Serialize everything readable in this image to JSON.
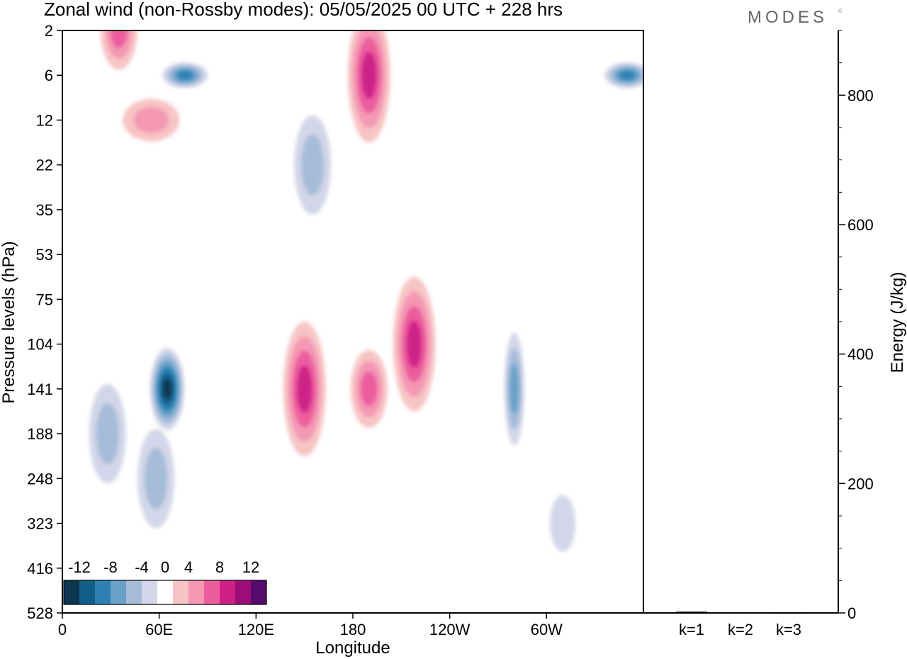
{
  "header": {
    "title": "Zonal wind (non-Rossby modes):  05/05/2025  00 UTC  + 228 hrs",
    "brand": "MODES",
    "brand_mark": "©"
  },
  "chart_data": [
    {
      "type": "heatmap",
      "title": "Zonal wind (non-Rossby modes):  05/05/2025  00 UTC  + 228 hrs",
      "xlabel": "Longitude",
      "ylabel": "Pressure levels (hPa)",
      "x_ticks": [
        "0",
        "60E",
        "120E",
        "180",
        "120W",
        "60W"
      ],
      "x_tick_degrees": [
        0,
        60,
        120,
        180,
        240,
        300
      ],
      "xlim": [
        0,
        360
      ],
      "y_ticks": [
        "2",
        "6",
        "12",
        "22",
        "35",
        "53",
        "75",
        "104",
        "141",
        "188",
        "248",
        "323",
        "416",
        "528"
      ],
      "y_scale": "pressure levels (top to bottom)",
      "grid": false,
      "colorbar": {
        "placement": "bottom-left inset",
        "labels": [
          "-12",
          "-8",
          "-4",
          "0",
          "4",
          "8",
          "12"
        ],
        "bins": [
          -14,
          -12,
          -10,
          -8,
          -6,
          -4,
          -2,
          2,
          4,
          6,
          8,
          10,
          12,
          14
        ],
        "colors": [
          "#0b3550",
          "#135f8a",
          "#2f80b3",
          "#69a1c9",
          "#a5bcd9",
          "#d3d6e8",
          "#ffffff",
          "#f7c4c4",
          "#f498b4",
          "#ec5d9d",
          "#cd2187",
          "#9b0e79",
          "#560a6b"
        ]
      },
      "features": [
        {
          "lon": 65,
          "level": "141",
          "value": -12
        },
        {
          "lon": 58,
          "level": "248",
          "value": -4
        },
        {
          "lon": 28,
          "level": "188",
          "value": -4
        },
        {
          "lon": 150,
          "level": "141",
          "value": 8
        },
        {
          "lon": 190,
          "level": "141",
          "value": 6
        },
        {
          "lon": 218,
          "level": "104",
          "value": 8
        },
        {
          "lon": 280,
          "level": "141",
          "value": -6
        },
        {
          "lon": 190,
          "level": "6",
          "value": 8
        },
        {
          "lon": 76,
          "level": "6",
          "value": -8
        },
        {
          "lon": 350,
          "level": "6",
          "value": -8
        },
        {
          "lon": 155,
          "level": "22",
          "value": -4
        },
        {
          "lon": 55,
          "level": "12",
          "value": 4
        },
        {
          "lon": 35,
          "level": "2",
          "value": 6
        },
        {
          "lon": 310,
          "level": "323",
          "value": -2
        }
      ]
    },
    {
      "type": "bar",
      "categories": [
        "k=1",
        "k=2",
        "k=3"
      ],
      "values": [
        2,
        1,
        0.5
      ],
      "ylabel": "Energy (J/kg)",
      "ylim": [
        0,
        900
      ],
      "y_ticks": [
        "0",
        "200",
        "400",
        "600",
        "800"
      ],
      "y_tick_values": [
        0,
        200,
        400,
        600,
        800
      ]
    }
  ]
}
